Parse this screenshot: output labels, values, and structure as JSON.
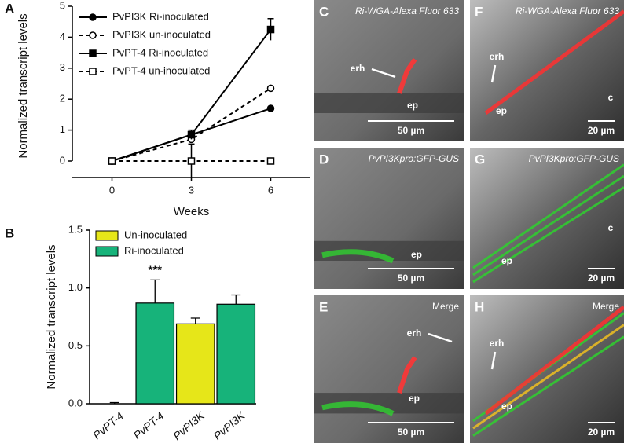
{
  "chart_data": [
    {
      "type": "line",
      "panel_label": "A",
      "x_label": "Weeks",
      "y_label": "Normalized transcript levels",
      "x": [
        0,
        3,
        6
      ],
      "xlim": [
        -1.5,
        7.5
      ],
      "xticks": [
        0,
        3,
        6
      ],
      "ylim": [
        0,
        5
      ],
      "yticks": [
        0,
        1,
        2,
        3,
        4,
        5
      ],
      "series": [
        {
          "name": "PvPI3K Ri-inoculated",
          "color": "#000000",
          "dashed": false,
          "marker": "circle",
          "filled": true,
          "values": [
            0,
            0.85,
            1.7
          ],
          "errors": [
            null,
            null,
            null
          ]
        },
        {
          "name": "PvPI3K un-inoculated",
          "color": "#000000",
          "dashed": true,
          "marker": "circle",
          "filled": false,
          "values": [
            0,
            0.7,
            2.35
          ],
          "errors": [
            null,
            null,
            null
          ]
        },
        {
          "name": "PvPT-4 Ri-inoculated",
          "color": "#000000",
          "dashed": false,
          "marker": "square",
          "filled": true,
          "values": [
            0,
            0.85,
            4.25
          ],
          "errors": [
            null,
            0.15,
            0.35
          ]
        },
        {
          "name": "PvPT-4 un-inoculated",
          "color": "#000000",
          "dashed": true,
          "marker": "square",
          "filled": false,
          "values": [
            0,
            0,
            0
          ],
          "errors": [
            null,
            0.55,
            null
          ]
        }
      ]
    },
    {
      "type": "bar",
      "panel_label": "B",
      "y_label": "Normalized transcript levels",
      "categories": [
        "PvPT-4",
        "PvPT-4",
        "PvPI3K",
        "PvPI3K"
      ],
      "ylim": [
        0,
        1.5
      ],
      "yticks": [
        {
          "value": 0,
          "label": "0.0"
        },
        0.5,
        {
          "value": 1,
          "label": "1.0"
        },
        1.5
      ],
      "series": [
        {
          "name": "Un-inoculated",
          "color": "#e6e619",
          "values": [
            0,
            null,
            0.69,
            null
          ],
          "errors": [
            0.01,
            null,
            0.05,
            null
          ]
        },
        {
          "name": "Ri-inoculated",
          "color": "#17b37a",
          "values": [
            null,
            0.87,
            null,
            0.86
          ],
          "errors": [
            null,
            0.2,
            null,
            0.08
          ]
        }
      ],
      "annotation": "***"
    }
  ],
  "panels": [
    {
      "letter": "C",
      "title": "Ri-WGA-Alexa Fluor 633",
      "labels": [
        "erh",
        "ep"
      ],
      "scale": "50 µm"
    },
    {
      "letter": "F",
      "title": "Ri-WGA-Alexa Fluor 633",
      "labels": [
        "erh",
        "ep",
        "c"
      ],
      "scale": "20 µm"
    },
    {
      "letter": "D",
      "title": "PvPI3Kpro:GFP-GUS",
      "labels": [
        "ep"
      ],
      "scale": "50 µm"
    },
    {
      "letter": "G",
      "title": "PvPI3Kpro:GFP-GUS",
      "labels": [
        "ep",
        "c"
      ],
      "scale": "20 µm"
    },
    {
      "letter": "E",
      "title": "Merge",
      "labels": [
        "erh",
        "ep"
      ],
      "scale": "50 µm"
    },
    {
      "letter": "H",
      "title": "Merge",
      "labels": [
        "erh",
        "ep"
      ],
      "scale": "20 µm"
    }
  ]
}
